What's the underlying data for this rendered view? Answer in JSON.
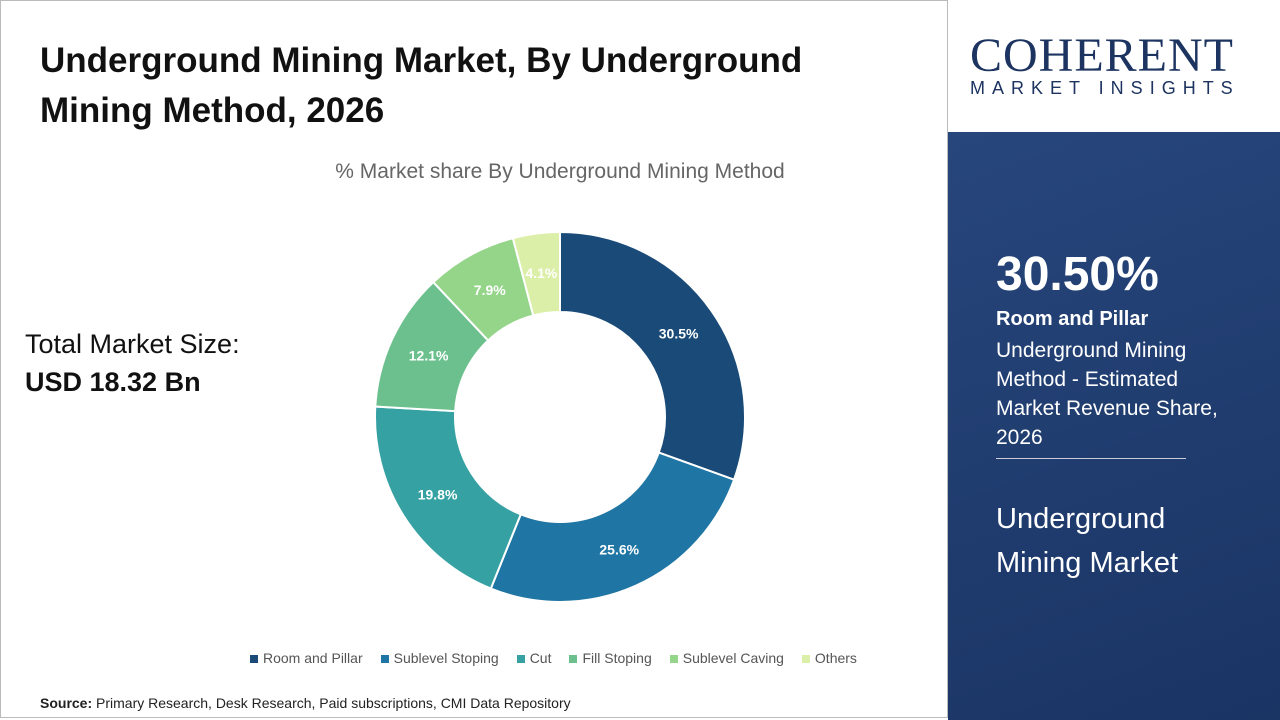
{
  "title": "Underground Mining Market, By Underground Mining Method, 2026",
  "total_label": "Total Market Size:",
  "total_value": "USD 18.32 Bn",
  "source_label": "Source:",
  "source_text": "Primary Research, Desk Research, Paid subscriptions, CMI Data Repository",
  "logo": {
    "top": "COHERENT",
    "bottom": "MARKET INSIGHTS"
  },
  "panel": {
    "pct": "30.50%",
    "bold": "Room and Pillar",
    "desc": "Underground Mining Method - Estimated Market Revenue Share, 2026",
    "market": "Underground Mining Market",
    "bg": "#1f3b6e"
  },
  "chart_data": {
    "type": "pie",
    "subtype": "donut",
    "title": "% Market share By Underground Mining Method",
    "legend_position": "bottom",
    "categories": [
      "Room and Pillar",
      "Sublevel Stoping",
      "Cut",
      "Fill Stoping",
      "Sublevel Caving",
      "Others"
    ],
    "values": [
      30.5,
      25.6,
      19.8,
      12.1,
      7.9,
      4.1
    ],
    "labels": [
      "30.5%",
      "25.6%",
      "19.8%",
      "12.1%",
      "7.9%",
      "4.1%"
    ],
    "colors": [
      "#1a4b78",
      "#1f75a3",
      "#35a1a3",
      "#6cc08e",
      "#95d58a",
      "#dcefa8"
    ]
  }
}
